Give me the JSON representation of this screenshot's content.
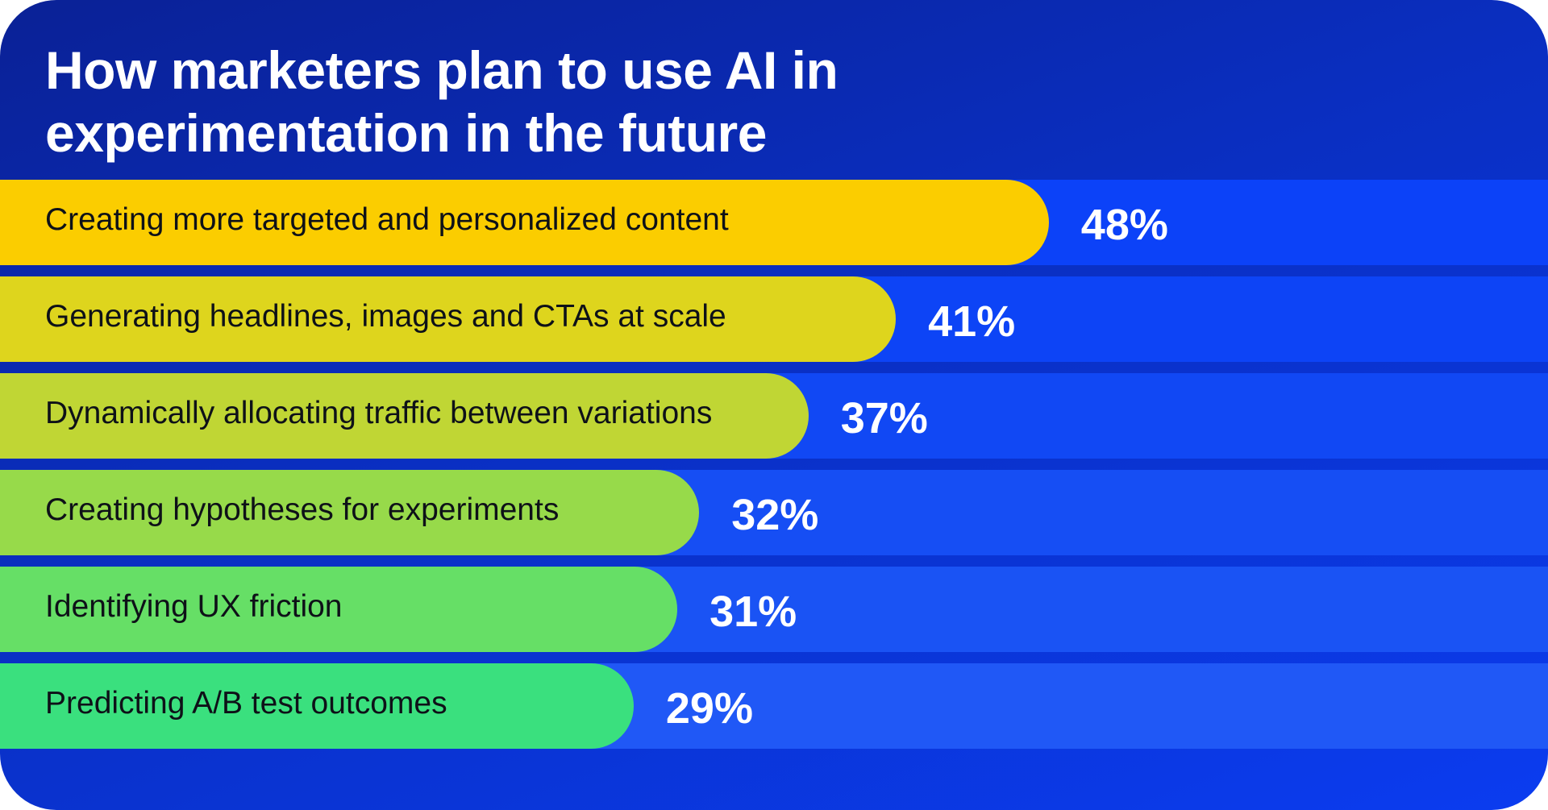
{
  "chart_data": {
    "type": "bar",
    "orientation": "horizontal",
    "title": "How marketers plan to use AI in experimentation in the future",
    "xlabel": "",
    "ylabel": "",
    "xlim": [
      0,
      59
    ],
    "grid": false,
    "legend": "none",
    "categories": [
      "Creating more targeted and personalized content",
      "Generating headlines, images and CTAs at scale",
      "Dynamically allocating traffic between variations",
      "Creating hypotheses for experiments",
      "Identifying UX friction",
      "Predicting A/B test outcomes"
    ],
    "values": [
      48,
      41,
      37,
      32,
      31,
      29
    ],
    "value_labels": [
      "48%",
      "41%",
      "37%",
      "32%",
      "31%",
      "29%"
    ],
    "bar_colors": [
      "#fbcd00",
      "#ded51d",
      "#c0d634",
      "#97da4a",
      "#66df66",
      "#3ae07e"
    ],
    "track_colors": [
      "#0c42f8",
      "#0d44f6",
      "#1148f4",
      "#164ef4",
      "#1a53f4",
      "#2058f6"
    ]
  }
}
